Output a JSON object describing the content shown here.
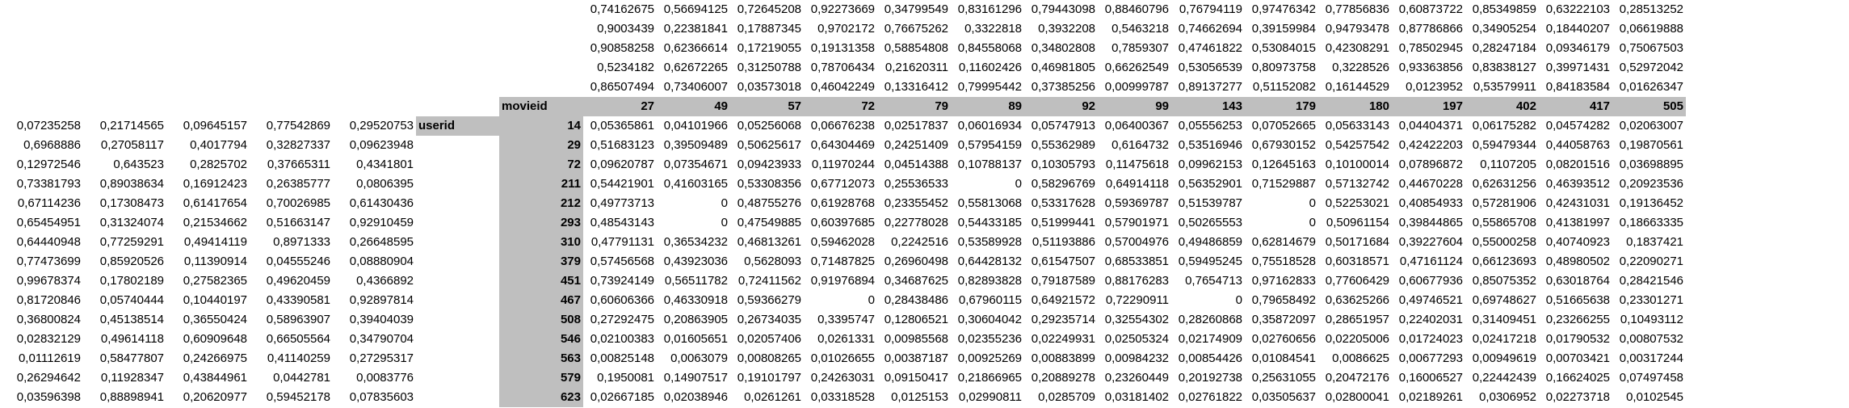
{
  "labels": {
    "movieid": "movieid",
    "userid": "userid"
  },
  "top_factors": [
    [
      "0,74162675",
      "0,56694125",
      "0,72645208",
      "0,92273669",
      "0,34799549",
      "0,83161296",
      "0,79443098",
      "0,88460796",
      "0,76794119",
      "0,97476342",
      "0,77856836",
      "0,60873722",
      "0,85349859",
      "0,63222103",
      "0,28513252"
    ],
    [
      "0,9003439",
      "0,22381841",
      "0,17887345",
      "0,9702172",
      "0,76675262",
      "0,3322818",
      "0,3932208",
      "0,5463218",
      "0,74662694",
      "0,39159984",
      "0,94793478",
      "0,87786866",
      "0,34905254",
      "0,18440207",
      "0,06619888"
    ],
    [
      "0,90858258",
      "0,62366614",
      "0,17219055",
      "0,19131358",
      "0,58854808",
      "0,84558068",
      "0,34802808",
      "0,7859307",
      "0,47461822",
      "0,53084015",
      "0,42308291",
      "0,78502945",
      "0,28247184",
      "0,09346179",
      "0,75067503"
    ],
    [
      "0,5234182",
      "0,62672265",
      "0,31250788",
      "0,78706434",
      "0,21620311",
      "0,11602426",
      "0,46981805",
      "0,66262549",
      "0,53056539",
      "0,80973758",
      "0,3228526",
      "0,93363856",
      "0,83838127",
      "0,39971431",
      "0,52972042"
    ],
    [
      "0,86507494",
      "0,73406007",
      "0,03573018",
      "0,46042249",
      "0,13316412",
      "0,79995442",
      "0,37385256",
      "0,00999787",
      "0,89137277",
      "0,51152082",
      "0,16144529",
      "0,0123952",
      "0,53579911",
      "0,84183584",
      "0,01626347"
    ]
  ],
  "movie_ids": [
    "27",
    "49",
    "57",
    "72",
    "79",
    "89",
    "92",
    "99",
    "143",
    "179",
    "180",
    "197",
    "402",
    "417",
    "505"
  ],
  "rows": [
    {
      "factors": [
        "0,07235258",
        "0,21714565",
        "0,09645157",
        "0,77542869",
        "0,29520753"
      ],
      "user": "14",
      "values": [
        "0,05365861",
        "0,04101966",
        "0,05256068",
        "0,06676238",
        "0,02517837",
        "0,06016934",
        "0,05747913",
        "0,06400367",
        "0,05556253",
        "0,07052665",
        "0,05633143",
        "0,04404371",
        "0,06175282",
        "0,04574282",
        "0,02063007"
      ]
    },
    {
      "factors": [
        "0,6968886",
        "0,27058117",
        "0,4017794",
        "0,32827337",
        "0,09623948"
      ],
      "user": "29",
      "values": [
        "0,51683123",
        "0,39509489",
        "0,50625617",
        "0,64304469",
        "0,24251409",
        "0,57954159",
        "0,55362989",
        "0,6164732",
        "0,53516946",
        "0,67930152",
        "0,54257542",
        "0,42422203",
        "0,59479344",
        "0,44058763",
        "0,19870561"
      ]
    },
    {
      "factors": [
        "0,12972546",
        "0,643523",
        "0,2825702",
        "0,37665311",
        "0,4341801"
      ],
      "user": "72",
      "values": [
        "0,09620787",
        "0,07354671",
        "0,09423933",
        "0,11970244",
        "0,04514388",
        "0,10788137",
        "0,10305793",
        "0,11475618",
        "0,09962153",
        "0,12645163",
        "0,10100014",
        "0,07896872",
        "0,1107205",
        "0,08201516",
        "0,03698895"
      ]
    },
    {
      "factors": [
        "0,73381793",
        "0,89038634",
        "0,16912423",
        "0,26385777",
        "0,0806395"
      ],
      "user": "211",
      "values": [
        "0,54421901",
        "0,41603165",
        "0,53308356",
        "0,67712073",
        "0,25536533",
        "0",
        "0,58296769",
        "0,64914118",
        "0,56352901",
        "0,71529887",
        "0,57132742",
        "0,44670228",
        "0,62631256",
        "0,46393512",
        "0,20923536"
      ]
    },
    {
      "factors": [
        "0,67114236",
        "0,17308473",
        "0,61417654",
        "0,70026985",
        "0,61430436"
      ],
      "user": "212",
      "values": [
        "0,49773713",
        "0",
        "0,48755276",
        "0,61928768",
        "0,23355452",
        "0,55813068",
        "0,53317628",
        "0,59369787",
        "0,51539787",
        "0",
        "0,52253021",
        "0,40854933",
        "0,57281906",
        "0,42431031",
        "0,19136452"
      ]
    },
    {
      "factors": [
        "0,65454951",
        "0,31324074",
        "0,21534662",
        "0,51663147",
        "0,92910459"
      ],
      "user": "293",
      "values": [
        "0,48543143",
        "0",
        "0,47549885",
        "0,60397685",
        "0,22778028",
        "0,54433185",
        "0,51999441",
        "0,57901971",
        "0,50265553",
        "0",
        "0,50961154",
        "0,39844865",
        "0,55865708",
        "0,41381997",
        "0,18663335"
      ]
    },
    {
      "factors": [
        "0,64440948",
        "0,77259291",
        "0,49414119",
        "0,8971333",
        "0,26648595"
      ],
      "user": "310",
      "values": [
        "0,47791131",
        "0,36534232",
        "0,46813261",
        "0,59462028",
        "0,2242516",
        "0,53589928",
        "0,51193886",
        "0,57004976",
        "0,49486859",
        "0,62814679",
        "0,50171684",
        "0,39227604",
        "0,55000258",
        "0,40740923",
        "0,1837421"
      ]
    },
    {
      "factors": [
        "0,77473699",
        "0,85920526",
        "0,11390914",
        "0,04555246",
        "0,08880904"
      ],
      "user": "379",
      "values": [
        "0,57456568",
        "0,43923036",
        "0,5628093",
        "0,71487825",
        "0,26960498",
        "0,64428132",
        "0,61547507",
        "0,68533851",
        "0,59495245",
        "0,75518528",
        "0,60318571",
        "0,47161124",
        "0,66123693",
        "0,48980502",
        "0,22090271"
      ]
    },
    {
      "factors": [
        "0,99678374",
        "0,17802189",
        "0,27582365",
        "0,49620459",
        "0,4366892"
      ],
      "user": "451",
      "values": [
        "0,73924149",
        "0,56511782",
        "0,72411562",
        "0,91976894",
        "0,34687625",
        "0,82893828",
        "0,79187589",
        "0,88176283",
        "0,7654713",
        "0,97162833",
        "0,77606429",
        "0,60677936",
        "0,85075352",
        "0,63018764",
        "0,28421546"
      ]
    },
    {
      "factors": [
        "0,81720846",
        "0,05740444",
        "0,10440197",
        "0,43390581",
        "0,92897814"
      ],
      "user": "467",
      "values": [
        "0,60606366",
        "0,46330918",
        "0,59366279",
        "0",
        "0,28438486",
        "0,67960115",
        "0,64921572",
        "0,72290911",
        "0",
        "0,79658492",
        "0,63625266",
        "0,49746521",
        "0,69748627",
        "0,51665638",
        "0,23301271"
      ]
    },
    {
      "factors": [
        "0,36800824",
        "0,45138514",
        "0,36550424",
        "0,58963907",
        "0,39404039"
      ],
      "user": "508",
      "values": [
        "0,27292475",
        "0,20863905",
        "0,26734035",
        "0,3395747",
        "0,12806521",
        "0,30604042",
        "0,29235714",
        "0,32554302",
        "0,28260868",
        "0,35872097",
        "0,28651957",
        "0,22402031",
        "0,31409451",
        "0,23266255",
        "0,10493112"
      ]
    },
    {
      "factors": [
        "0,02832129",
        "0,49614118",
        "0,60909648",
        "0,66505564",
        "0,34790704"
      ],
      "user": "546",
      "values": [
        "0,02100383",
        "0,01605651",
        "0,02057406",
        "0,0261331",
        "0,00985568",
        "0,02355236",
        "0,02249931",
        "0,02505324",
        "0,02174909",
        "0,02760656",
        "0,02205006",
        "0,01724023",
        "0,02417218",
        "0,01790532",
        "0,00807532"
      ]
    },
    {
      "factors": [
        "0,01112619",
        "0,58477807",
        "0,24266975",
        "0,41140259",
        "0,27295317"
      ],
      "user": "563",
      "values": [
        "0,00825148",
        "0,0063079",
        "0,00808265",
        "0,01026655",
        "0,00387187",
        "0,00925269",
        "0,00883899",
        "0,00984232",
        "0,00854426",
        "0,01084541",
        "0,0086625",
        "0,00677293",
        "0,00949619",
        "0,00703421",
        "0,00317244"
      ]
    },
    {
      "factors": [
        "0,26294642",
        "0,11928347",
        "0,43844961",
        "0,0442781",
        "0,0083776"
      ],
      "user": "579",
      "values": [
        "0,1950081",
        "0,14907517",
        "0,19101797",
        "0,24263031",
        "0,09150417",
        "0,21866965",
        "0,20889278",
        "0,23260449",
        "0,20192738",
        "0,25631055",
        "0,20472176",
        "0,16006527",
        "0,22442439",
        "0,16624025",
        "0,07497458"
      ]
    },
    {
      "factors": [
        "0,03596398",
        "0,88898941",
        "0,20620977",
        "0,59452178",
        "0,07835603"
      ],
      "user": "623",
      "values": [
        "0,02667185",
        "0,02038946",
        "0,0261261",
        "0,03318528",
        "0,0125153",
        "0,02990811",
        "0,0285709",
        "0,03181402",
        "0,02761822",
        "0,03505637",
        "0,02800041",
        "0,02189261",
        "0,0306952",
        "0,02273718",
        "0,0102545"
      ]
    }
  ]
}
